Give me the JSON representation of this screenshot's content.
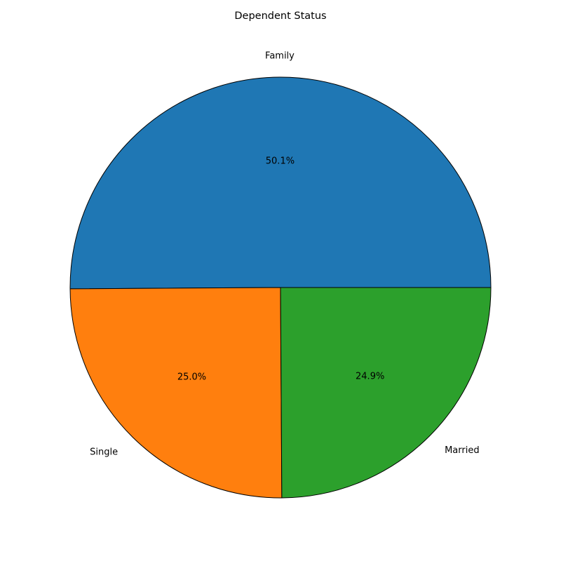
{
  "chart_data": {
    "type": "pie",
    "title": "Dependent Status",
    "slices": [
      {
        "label": "Family",
        "value": 50.1,
        "pct_label": "50.1%",
        "color": "#1f77b4"
      },
      {
        "label": "Single",
        "value": 25.0,
        "pct_label": "25.0%",
        "color": "#ff7f0e"
      },
      {
        "label": "Married",
        "value": 24.9,
        "pct_label": "24.9%",
        "color": "#2ca02c"
      }
    ],
    "start_angle_deg": 0,
    "direction": "counterclockwise",
    "edge_color": "#000000"
  }
}
